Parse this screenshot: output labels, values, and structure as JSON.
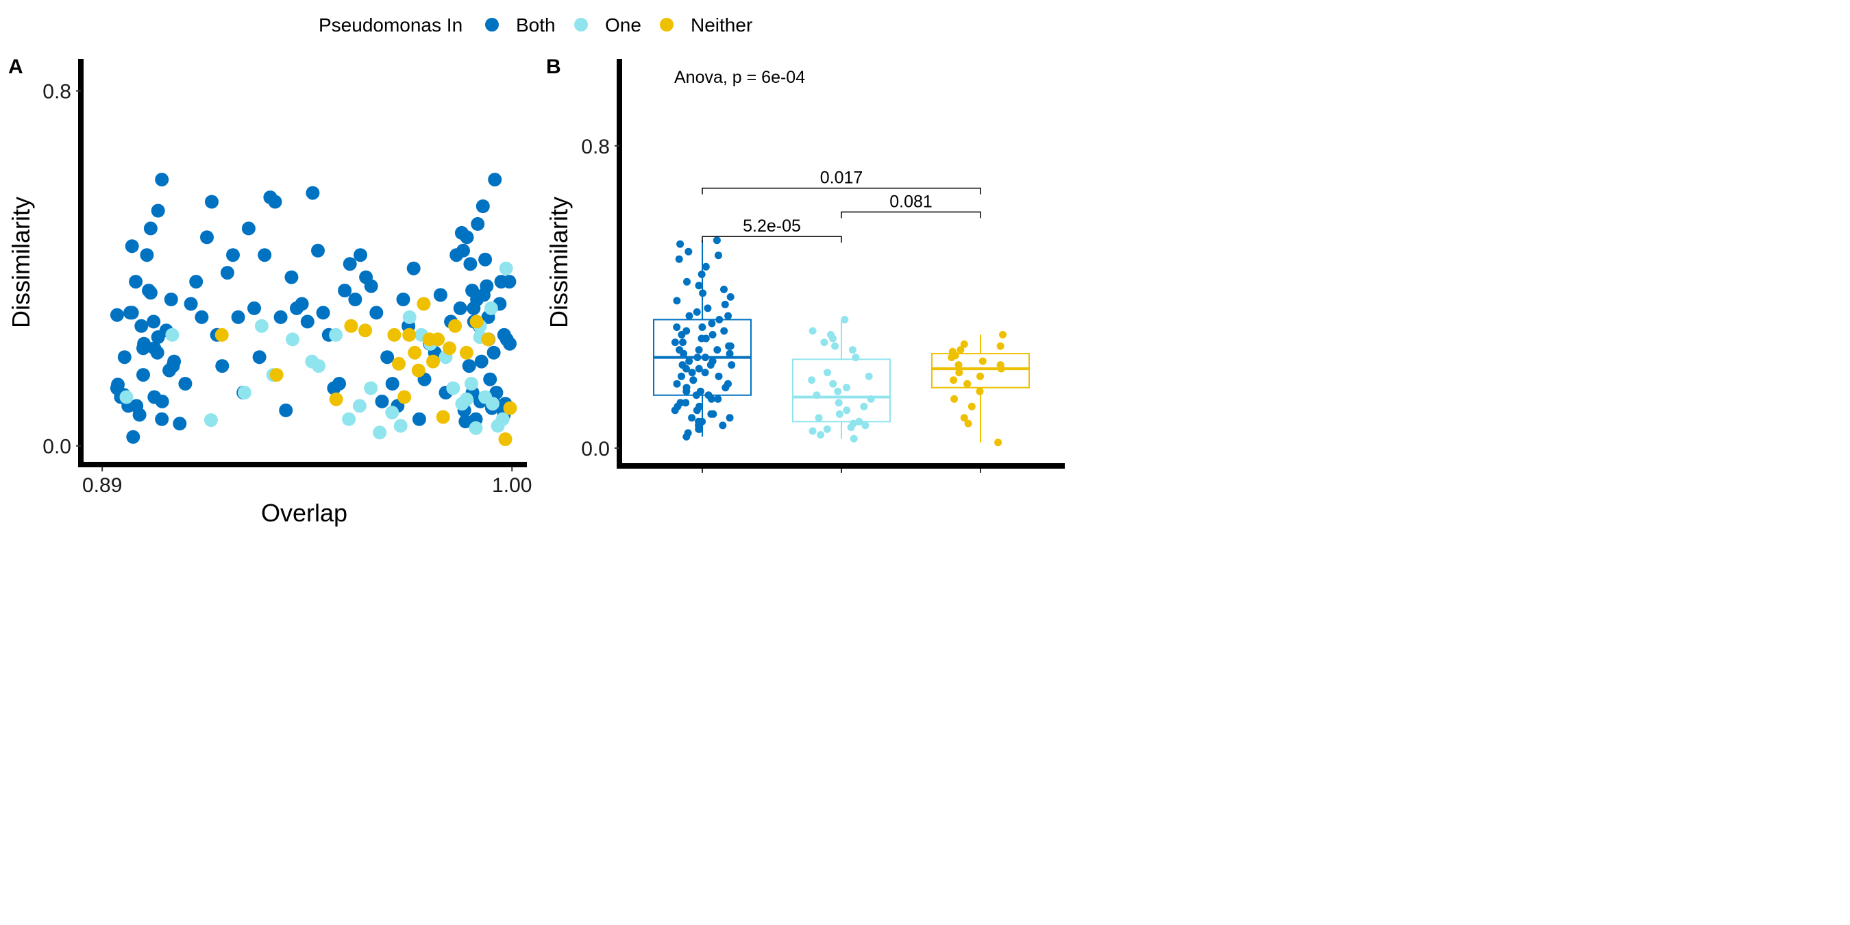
{
  "legend": {
    "title": "Pseudomonas In",
    "items": [
      {
        "label": "Both",
        "color": "#0072C2"
      },
      {
        "label": "One",
        "color": "#90E4EE"
      },
      {
        "label": "Neither",
        "color": "#EFC000"
      }
    ]
  },
  "chart_data": [
    {
      "type": "scatter",
      "panel": "A",
      "xlabel": "Overlap",
      "ylabel": "Dissimilarity",
      "xlim": [
        0.885,
        1.004
      ],
      "ylim": [
        -0.036,
        0.872
      ],
      "xticks": [
        {
          "value": 0.89,
          "label": "0.89"
        },
        {
          "value": 1.0,
          "label": "1.00"
        }
      ],
      "yticks": [
        {
          "value": 0.0,
          "label": "0.0"
        },
        {
          "value": 0.8,
          "label": "0.8"
        }
      ],
      "series": [
        {
          "name": "Both",
          "color": "#0072C2",
          "points": [
            [
              0.894,
              0.295
            ],
            [
              0.898,
              0.3
            ],
            [
              0.901,
              0.22
            ],
            [
              0.902,
              0.43
            ],
            [
              0.903,
              0.345
            ],
            [
              0.904,
              0.22
            ],
            [
              0.905,
              0.53
            ],
            [
              0.906,
              0.6
            ],
            [
              0.894,
              0.13
            ],
            [
              0.895,
              0.11
            ],
            [
              0.896,
              0.2
            ],
            [
              0.897,
              0.09
            ],
            [
              0.898,
              0.45
            ],
            [
              0.899,
              0.37
            ],
            [
              0.9,
              0.07
            ],
            [
              0.901,
              0.16
            ],
            [
              0.903,
              0.49
            ],
            [
              0.904,
              0.11
            ],
            [
              0.905,
              0.245
            ],
            [
              0.906,
              0.06
            ],
            [
              0.908,
              0.17
            ],
            [
              0.909,
              0.18
            ],
            [
              0.8942,
              0.138
            ],
            [
              0.8958,
              0.115
            ],
            [
              0.8975,
              0.3
            ],
            [
              0.8983,
              0.02
            ],
            [
              0.8992,
              0.09
            ],
            [
              0.9005,
              0.27
            ],
            [
              0.9012,
              0.23
            ],
            [
              0.9025,
              0.35
            ],
            [
              0.9038,
              0.28
            ],
            [
              0.9048,
              0.21
            ],
            [
              0.9061,
              0.1
            ],
            [
              0.9072,
              0.26
            ],
            [
              0.9085,
              0.33
            ],
            [
              0.9093,
              0.19
            ],
            [
              0.9108,
              0.05
            ],
            [
              0.9123,
              0.14
            ],
            [
              0.9138,
              0.32
            ],
            [
              0.9152,
              0.37
            ],
            [
              0.9167,
              0.29
            ],
            [
              0.9181,
              0.47
            ],
            [
              0.9194,
              0.55
            ],
            [
              0.9208,
              0.25
            ],
            [
              0.9222,
              0.18
            ],
            [
              0.9236,
              0.39
            ],
            [
              0.9251,
              0.43
            ],
            [
              0.9265,
              0.29
            ],
            [
              0.9279,
              0.12
            ],
            [
              0.9293,
              0.49
            ],
            [
              0.9308,
              0.31
            ],
            [
              0.9322,
              0.2
            ],
            [
              0.9336,
              0.43
            ],
            [
              0.9351,
              0.56
            ],
            [
              0.9364,
              0.55
            ],
            [
              0.9379,
              0.29
            ],
            [
              0.9393,
              0.08
            ],
            [
              0.9408,
              0.38
            ],
            [
              0.9422,
              0.31
            ],
            [
              0.9436,
              0.32
            ],
            [
              0.9451,
              0.28
            ],
            [
              0.9465,
              0.57
            ],
            [
              0.9479,
              0.44
            ],
            [
              0.9493,
              0.3
            ],
            [
              0.9508,
              0.25
            ],
            [
              0.9522,
              0.13
            ],
            [
              0.9536,
              0.14
            ],
            [
              0.9551,
              0.35
            ],
            [
              0.9565,
              0.41
            ],
            [
              0.9579,
              0.33
            ],
            [
              0.9593,
              0.43
            ],
            [
              0.9608,
              0.38
            ],
            [
              0.9622,
              0.36
            ],
            [
              0.9636,
              0.3
            ],
            [
              0.9651,
              0.1
            ],
            [
              0.9665,
              0.2
            ],
            [
              0.9679,
              0.14
            ],
            [
              0.9693,
              0.09
            ],
            [
              0.9708,
              0.33
            ],
            [
              0.9722,
              0.27
            ],
            [
              0.9736,
              0.4
            ],
            [
              0.9751,
              0.06
            ],
            [
              0.9765,
              0.15
            ],
            [
              0.9779,
              0.23
            ],
            [
              0.9793,
              0.21
            ],
            [
              0.9808,
              0.34
            ],
            [
              0.9822,
              0.12
            ],
            [
              0.9836,
              0.28
            ],
            [
              0.9851,
              0.43
            ],
            [
              0.9865,
              0.48
            ],
            [
              0.9879,
              0.47
            ],
            [
              0.9893,
              0.35
            ],
            [
              0.9908,
              0.5
            ],
            [
              0.9922,
              0.54
            ],
            [
              0.9936,
              0.29
            ],
            [
              0.9951,
              0.21
            ],
            [
              0.9965,
              0.09
            ],
            [
              0.9979,
              0.25
            ],
            [
              0.9993,
              0.37
            ],
            [
              0.9872,
              0.08
            ],
            [
              0.9885,
              0.18
            ],
            [
              0.9897,
              0.31
            ],
            [
              0.9903,
              0.06
            ],
            [
              0.9915,
              0.1
            ],
            [
              0.9928,
              0.42
            ],
            [
              0.9941,
              0.15
            ],
            [
              0.9954,
              0.6
            ],
            [
              0.9967,
              0.32
            ],
            [
              0.9978,
              0.07
            ],
            [
              0.9986,
              0.24
            ],
            [
              0.9994,
              0.23
            ],
            [
              0.9875,
              0.055
            ],
            [
              0.9888,
              0.41
            ],
            [
              0.9898,
              0.28
            ],
            [
              0.9912,
              0.27
            ],
            [
              0.9924,
              0.34
            ],
            [
              0.9932,
              0.36
            ],
            [
              0.9946,
              0.085
            ],
            [
              0.9958,
              0.12
            ],
            [
              0.9971,
              0.37
            ],
            [
              0.9982,
              0.095
            ],
            [
              0.9861,
              0.31
            ],
            [
              0.9869,
              0.44
            ],
            [
              0.9894,
              0.12
            ],
            [
              0.9906,
              0.33
            ],
            [
              0.9918,
              0.19
            ],
            [
              0.9937,
              0.24
            ]
          ]
        },
        {
          "name": "One",
          "color": "#90E4EE",
          "points": [
            [
              0.8965,
              0.11
            ],
            [
              0.9088,
              0.25
            ],
            [
              0.9192,
              0.058
            ],
            [
              0.9282,
              0.12
            ],
            [
              0.9328,
              0.27
            ],
            [
              0.9359,
              0.16
            ],
            [
              0.9411,
              0.24
            ],
            [
              0.9463,
              0.19
            ],
            [
              0.9481,
              0.18
            ],
            [
              0.9527,
              0.25
            ],
            [
              0.9562,
              0.06
            ],
            [
              0.9591,
              0.09
            ],
            [
              0.9621,
              0.13
            ],
            [
              0.9645,
              0.03
            ],
            [
              0.9678,
              0.075
            ],
            [
              0.9701,
              0.045
            ],
            [
              0.9725,
              0.29
            ],
            [
              0.9757,
              0.25
            ],
            [
              0.9781,
              0.23
            ],
            [
              0.9822,
              0.2
            ],
            [
              0.9842,
              0.13
            ],
            [
              0.9866,
              0.095
            ],
            [
              0.9878,
              0.105
            ],
            [
              0.9891,
              0.14
            ],
            [
              0.9903,
              0.04
            ],
            [
              0.9914,
              0.245
            ],
            [
              0.9928,
              0.11
            ],
            [
              0.9948,
              0.095
            ],
            [
              0.9962,
              0.045
            ],
            [
              0.9975,
              0.06
            ],
            [
              0.9984,
              0.4
            ],
            [
              0.9944,
              0.31
            ],
            [
              0.9914,
              0.27
            ]
          ]
        },
        {
          "name": "Neither",
          "color": "#EFC000",
          "points": [
            [
              0.9221,
              0.25
            ],
            [
              0.9368,
              0.16
            ],
            [
              0.9528,
              0.105
            ],
            [
              0.9568,
              0.27
            ],
            [
              0.9606,
              0.26
            ],
            [
              0.9684,
              0.25
            ],
            [
              0.9696,
              0.185
            ],
            [
              0.9711,
              0.11
            ],
            [
              0.9724,
              0.25
            ],
            [
              0.9739,
              0.21
            ],
            [
              0.9749,
              0.17
            ],
            [
              0.9763,
              0.32
            ],
            [
              0.9778,
              0.24
            ],
            [
              0.9788,
              0.19
            ],
            [
              0.9801,
              0.24
            ],
            [
              0.9815,
              0.065
            ],
            [
              0.9832,
              0.22
            ],
            [
              0.9847,
              0.27
            ],
            [
              0.9878,
              0.21
            ],
            [
              0.9905,
              0.28
            ],
            [
              0.9936,
              0.24
            ],
            [
              0.9982,
              0.015
            ],
            [
              0.9995,
              0.085
            ]
          ]
        }
      ]
    },
    {
      "type": "box",
      "panel": "B",
      "xlabel": "",
      "ylabel": "Dissimilarity",
      "ylim": [
        -0.04,
        1.03
      ],
      "yticks": [
        {
          "value": 0.0,
          "label": "0.0"
        },
        {
          "value": 0.8,
          "label": "0.8"
        }
      ],
      "categories": [
        "Both",
        "One",
        "Neither"
      ],
      "annotation": "Anova, p = 6e-04",
      "boxes": [
        {
          "name": "Both",
          "color": "#0072C2",
          "q1": 0.14,
          "median": 0.24,
          "q3": 0.34,
          "min": 0.03,
          "max": 0.55,
          "points": [
            0.46,
            0.48,
            0.5,
            0.44,
            0.43,
            0.41,
            0.39,
            0.38,
            0.37,
            0.36,
            0.35,
            0.34,
            0.33,
            0.32,
            0.32,
            0.31,
            0.3,
            0.3,
            0.29,
            0.29,
            0.28,
            0.28,
            0.27,
            0.27,
            0.26,
            0.26,
            0.25,
            0.25,
            0.24,
            0.24,
            0.23,
            0.23,
            0.22,
            0.22,
            0.21,
            0.21,
            0.2,
            0.2,
            0.19,
            0.19,
            0.18,
            0.18,
            0.17,
            0.17,
            0.16,
            0.16,
            0.15,
            0.15,
            0.14,
            0.14,
            0.13,
            0.13,
            0.12,
            0.12,
            0.11,
            0.11,
            0.1,
            0.1,
            0.09,
            0.09,
            0.08,
            0.08,
            0.07,
            0.07,
            0.06,
            0.06,
            0.05,
            0.05,
            0.04,
            0.03,
            0.55,
            0.54,
            0.52,
            0.51,
            0.42,
            0.4,
            0.35,
            0.31,
            0.26,
            0.22
          ]
        },
        {
          "name": "One",
          "color": "#90E4EE",
          "q1": 0.07,
          "median": 0.135,
          "q3": 0.235,
          "min": 0.025,
          "max": 0.34,
          "points": [
            0.34,
            0.31,
            0.3,
            0.29,
            0.28,
            0.27,
            0.26,
            0.24,
            0.2,
            0.19,
            0.18,
            0.17,
            0.16,
            0.15,
            0.14,
            0.13,
            0.12,
            0.11,
            0.1,
            0.09,
            0.08,
            0.07,
            0.06,
            0.05,
            0.045,
            0.035,
            0.025,
            0.065,
            0.055
          ]
        },
        {
          "name": "Neither",
          "color": "#EFC000",
          "q1": 0.16,
          "median": 0.21,
          "q3": 0.25,
          "min": 0.015,
          "max": 0.3,
          "points": [
            0.3,
            0.275,
            0.27,
            0.26,
            0.255,
            0.245,
            0.24,
            0.23,
            0.22,
            0.21,
            0.2,
            0.19,
            0.18,
            0.17,
            0.15,
            0.13,
            0.11,
            0.08,
            0.065,
            0.015,
            0.22
          ]
        }
      ],
      "comparisons": [
        {
          "groups": [
            "Both",
            "One"
          ],
          "label": "5.2e-05",
          "y": 0.56
        },
        {
          "groups": [
            "One",
            "Neither"
          ],
          "label": "0.081",
          "y": 0.625
        },
        {
          "groups": [
            "Both",
            "Neither"
          ],
          "label": "0.017",
          "y": 0.688
        }
      ]
    }
  ]
}
